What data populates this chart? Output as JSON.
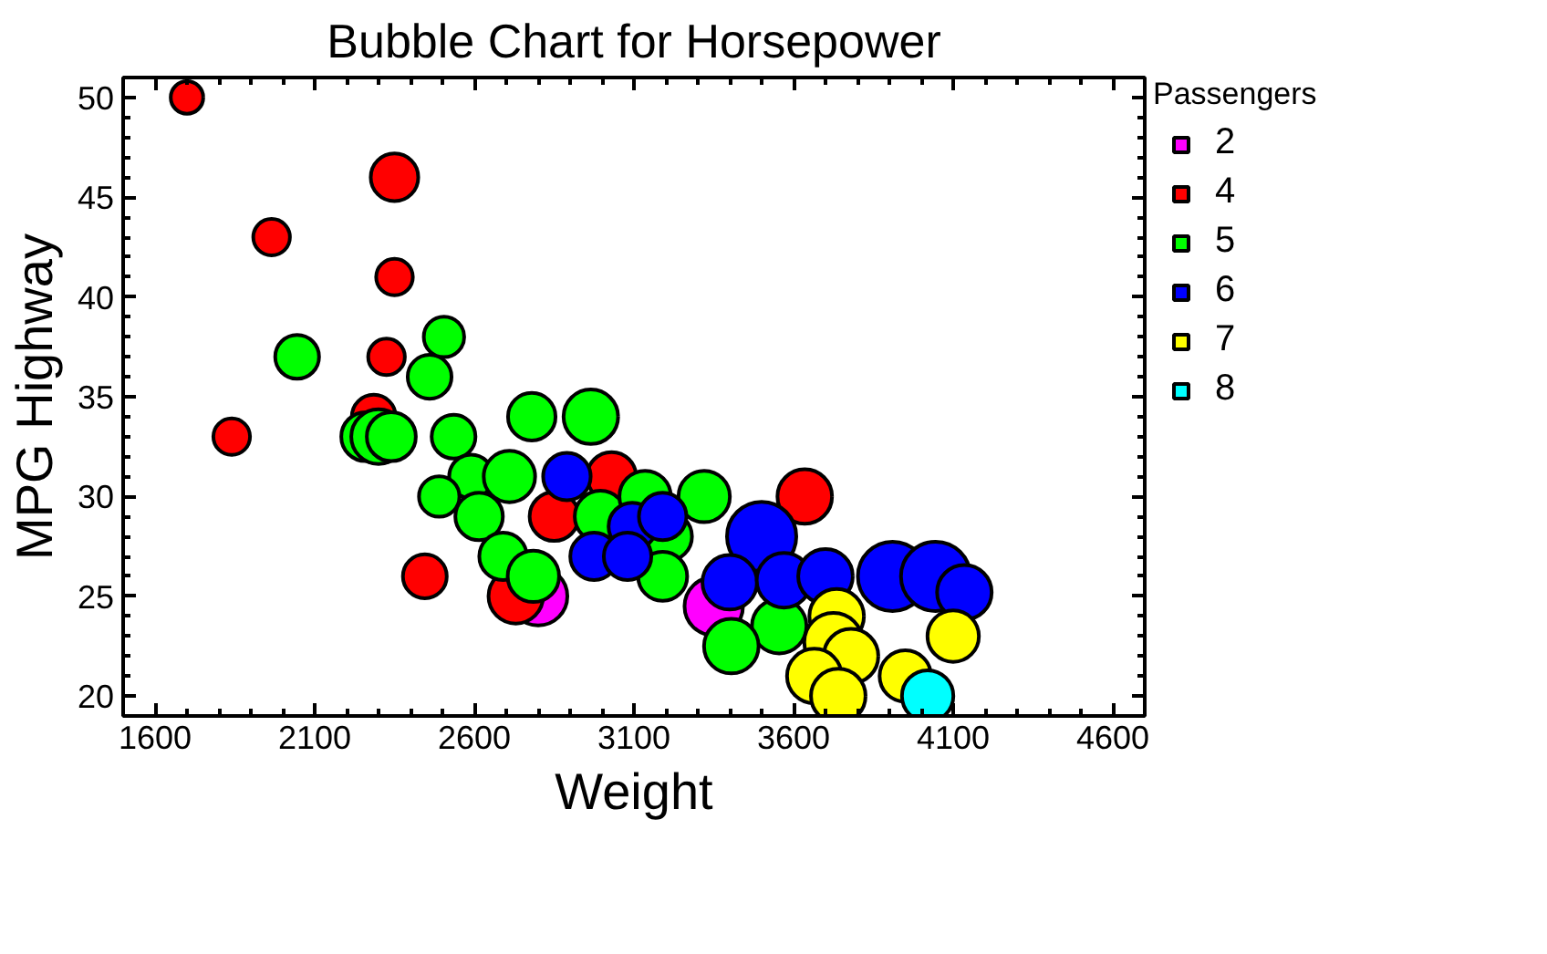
{
  "chart_data": {
    "type": "bubble",
    "title": "Bubble Chart for Horsepower",
    "xlabel": "Weight",
    "ylabel": "MPG Highway",
    "legend_title": "Passengers",
    "legend": "right",
    "grid": false,
    "marker": "circle",
    "xlim": [
      1500,
      4700
    ],
    "ylim": [
      19,
      51
    ],
    "xticks": [
      1600,
      2100,
      2600,
      3100,
      3600,
      4100,
      4600
    ],
    "yticks": [
      20,
      25,
      30,
      35,
      40,
      45,
      50
    ],
    "series": [
      {
        "name": "2",
        "color": "#ff00ff",
        "x": [
          2800,
          3350
        ],
        "values": [
          25,
          24.5
        ],
        "sizes": [
          0.71,
          0.71
        ]
      },
      {
        "name": "4",
        "color": "#ff0000",
        "x": [
          1700,
          1840,
          1965,
          2350,
          2350,
          2325,
          2285,
          2445,
          2850,
          2730,
          3030,
          3635
        ],
        "values": [
          50,
          33,
          43,
          46,
          41,
          37,
          34,
          26,
          29,
          25,
          31,
          30
        ],
        "sizes": [
          0.22,
          0.28,
          0.28,
          0.47,
          0.28,
          0.28,
          0.4,
          0.4,
          0.5,
          0.62,
          0.5,
          0.62
        ]
      },
      {
        "name": "5",
        "color": "#00ff00",
        "x": [
          2045,
          2260,
          2300,
          2340,
          2460,
          2505,
          2535,
          2590,
          2490,
          2615,
          2710,
          2690,
          2780,
          2965,
          2785,
          2995,
          3135,
          3205,
          3190,
          3320,
          3555,
          3405
        ],
        "values": [
          37,
          33,
          33,
          33,
          36,
          38,
          33,
          31,
          30,
          29,
          31,
          27,
          34,
          34,
          26,
          29,
          30,
          28,
          26,
          30,
          23.5,
          22.5
        ],
        "sizes": [
          0.4,
          0.5,
          0.62,
          0.5,
          0.4,
          0.34,
          0.4,
          0.4,
          0.34,
          0.47,
          0.55,
          0.47,
          0.47,
          0.62,
          0.55,
          0.55,
          0.55,
          0.5,
          0.5,
          0.55,
          0.62,
          0.62
        ]
      },
      {
        "name": "6",
        "color": "#0000ff",
        "x": [
          2890,
          2975,
          3095,
          3080,
          3190,
          3500,
          3400,
          3570,
          3700,
          3910,
          4045,
          4135
        ],
        "values": [
          31,
          27,
          28.5,
          27,
          29,
          28,
          25.7,
          25.8,
          26,
          26,
          26,
          25.2
        ],
        "sizes": [
          0.47,
          0.47,
          0.47,
          0.47,
          0.47,
          1,
          0.62,
          0.62,
          0.62,
          1,
          1,
          0.62
        ]
      },
      {
        "name": "7",
        "color": "#ffff00",
        "x": [
          3735,
          3725,
          3780,
          3665,
          3740,
          3950,
          4100
        ],
        "values": [
          24,
          22.7,
          22,
          21,
          20,
          21,
          23
        ],
        "sizes": [
          0.62,
          0.71,
          0.62,
          0.62,
          0.62,
          0.55,
          0.55
        ]
      },
      {
        "name": "8",
        "color": "#00ffff",
        "x": [
          4020
        ],
        "values": [
          20
        ],
        "sizes": [
          0.55
        ]
      }
    ]
  }
}
